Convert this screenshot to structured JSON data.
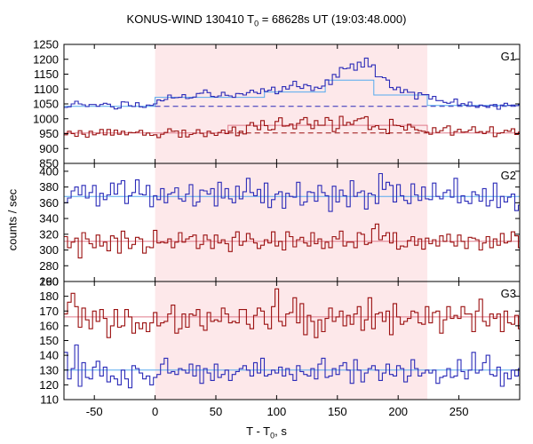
{
  "title": {
    "pre": "KONUS-WIND 130410 T",
    "sub": "0",
    "post": " = 68628s UT (19:03:48.000)"
  },
  "xlabel": {
    "pre": "T - T",
    "sub": "0",
    "post": ", s"
  },
  "ylabel": "counts / sec",
  "colors": {
    "blue": "#2b2bb8",
    "red": "#9b1111",
    "blue_fit": "#55aaee",
    "red_fit": "#e07a8a",
    "shade": "#fde8ea"
  },
  "chart_data": {
    "type": "line",
    "xlim": [
      -75,
      300
    ],
    "x_ticks": [
      -50,
      0,
      50,
      100,
      150,
      200,
      250
    ],
    "shaded_interval": [
      0,
      224
    ],
    "panels": [
      {
        "name": "G1",
        "ylim": [
          850,
          1250
        ],
        "yticks": [
          850,
          900,
          950,
          1000,
          1050,
          1100,
          1150,
          1200,
          1250
        ],
        "series": [
          {
            "color": "blue",
            "x_start": -75,
            "bin": 2.944,
            "values": [
              1038,
              1040,
              1050,
              1059,
              1050,
              1047,
              1041,
              1048,
              1048,
              1042,
              1048,
              1052,
              1049,
              1040,
              1033,
              1036,
              1057,
              1056,
              1044,
              1041,
              1054,
              1040,
              1038,
              1046,
              1045,
              1050,
              1063,
              1060,
              1065,
              1080,
              1070,
              1071,
              1072,
              1081,
              1068,
              1070,
              1073,
              1085,
              1086,
              1097,
              1088,
              1075,
              1073,
              1077,
              1089,
              1079,
              1077,
              1072,
              1085,
              1084,
              1080,
              1088,
              1096,
              1089,
              1085,
              1101,
              1092,
              1096,
              1106,
              1084,
              1092,
              1108,
              1100,
              1112,
              1126,
              1108,
              1102,
              1115,
              1111,
              1095,
              1106,
              1102,
              1110,
              1131,
              1115,
              1149,
              1140,
              1172,
              1168,
              1170,
              1184,
              1163,
              1190,
              1174,
              1204,
              1175,
              1181,
              1141,
              1141,
              1138,
              1130,
              1105,
              1098,
              1106,
              1088,
              1098,
              1089,
              1089,
              1066,
              1087,
              1081,
              1081,
              1066,
              1075,
              1061,
              1061,
              1055,
              1052,
              1056,
              1066,
              1046,
              1051,
              1046,
              1056,
              1043,
              1038,
              1046,
              1043,
              1038,
              1046,
              1048,
              1032,
              1046,
              1052,
              1045,
              1046,
              1044,
              1047
            ]
          },
          {
            "color": "red",
            "x_start": -75,
            "bin": 2.944,
            "values": [
              946,
              958,
              950,
              941,
              960,
              948,
              938,
              958,
              946,
              951,
              964,
              946,
              964,
              945,
              962,
              948,
              958,
              946,
              954,
              953,
              955,
              961,
              945,
              952,
              944,
              946,
              937,
              948,
              954,
              966,
              958,
              959,
              938,
              962,
              939,
              947,
              951,
              963,
              951,
              940,
              958,
              951,
              944,
              954,
              962,
              950,
              958,
              972,
              943,
              958,
              949,
              978,
              987,
              975,
              963,
              994,
              977,
              962,
              964,
              991,
              1003,
              975,
              976,
              982,
              966,
              984,
              997,
              1004,
              981,
              967,
              994,
              978,
              978,
              1004,
              995,
              957,
              967,
              1008,
              978,
              988,
              981,
              994,
              1000,
              1002,
              1007,
              964,
              973,
              977,
              965,
              965,
              950,
              998,
              978,
              977,
              974,
              962,
              981,
              972,
              963,
              960,
              958,
              955,
              948,
              970,
              954,
              960,
              970,
              976,
              945,
              957,
              965,
              955,
              956,
              962,
              973,
              954,
              957,
              950,
              957,
              973,
              940,
              951,
              953,
              961,
              958,
              966,
              947,
              955
            ]
          }
        ],
        "fits": [
          {
            "color": "blue_fit",
            "x": [
              -75,
              0,
              0,
              90,
              90,
              140,
              140,
              180,
              180,
              224,
              224,
              300
            ],
            "y": [
              1042,
              1042,
              1072,
              1072,
              1090,
              1090,
              1130,
              1130,
              1080,
              1080,
              1045,
              1045
            ]
          },
          {
            "color": "blue",
            "dashed": true,
            "x": [
              0,
              300
            ],
            "y": [
              1042,
              1042
            ]
          },
          {
            "color": "red_fit",
            "x": [
              -75,
              60,
              60,
              224,
              224,
              300
            ],
            "y": [
              952,
              952,
              978,
              978,
              952,
              952
            ]
          },
          {
            "color": "red",
            "dashed": true,
            "x": [
              60,
              224
            ],
            "y": [
              952,
              952
            ]
          }
        ]
      },
      {
        "name": "G2",
        "ylim": [
          260,
          410
        ],
        "yticks": [
          260,
          280,
          300,
          320,
          340,
          360,
          380,
          400
        ],
        "series": [
          {
            "color": "blue",
            "x_start": -75,
            "bin": 2.944,
            "values": [
              360,
              366,
              375,
              380,
              370,
              382,
              366,
              373,
              382,
              356,
              372,
              364,
              370,
              385,
              371,
              384,
              388,
              359,
              369,
              373,
              389,
              371,
              370,
              382,
              355,
              369,
              364,
              378,
              360,
              371,
              373,
              379,
              365,
              362,
              371,
              383,
              356,
              361,
              376,
              375,
              371,
              378,
              356,
              386,
              366,
              378,
              365,
              360,
              381,
              365,
              374,
              391,
              373,
              369,
              377,
              360,
              385,
              354,
              364,
              371,
              374,
              353,
              372,
              368,
              367,
              386,
              357,
              361,
              374,
              373,
              362,
              382,
              373,
              369,
              349,
              381,
              361,
              376,
              369,
              355,
              388,
              368,
              373,
              375,
              352,
              372,
              370,
              359,
              397,
              377,
              386,
              382,
              361,
              383,
              369,
              363,
              359,
              384,
              370,
              363,
              380,
              365,
              364,
              385,
              368,
              365,
              373,
              376,
              367,
              391,
              360,
              369,
              362,
              359,
              374,
              370,
              362,
              378,
              356,
              363,
              385,
              354,
              368,
              361,
              367,
              371,
              350,
              357
            ]
          },
          {
            "color": "red",
            "x_start": -75,
            "bin": 2.944,
            "values": [
              317,
              303,
              310,
              315,
              290,
              322,
              314,
              308,
              303,
              319,
              305,
              310,
              299,
              318,
              315,
              296,
              324,
              315,
              302,
              307,
              316,
              314,
              296,
              304,
              303,
              325,
              309,
              310,
              309,
              314,
              303,
              310,
              322,
              310,
              314,
              317,
              319,
              302,
              307,
              319,
              313,
              302,
              319,
              309,
              313,
              308,
              298,
              316,
              323,
              306,
              311,
              321,
              314,
              309,
              302,
              306,
              313,
              309,
              323,
              305,
              311,
              300,
              323,
              317,
              304,
              313,
              316,
              309,
              305,
              322,
              308,
              314,
              302,
              310,
              303,
              317,
              314,
              324,
              305,
              310,
              310,
              303,
              322,
              320,
              307,
              309,
              327,
              333,
              313,
              318,
              322,
              309,
              322,
              301,
              305,
              304,
              312,
              317,
              306,
              314,
              301,
              315,
              308,
              313,
              305,
              318,
              311,
              320,
              310,
              305,
              319,
              311,
              302,
              316,
              315,
              313,
              300,
              309,
              317,
              303,
              314,
              306,
              321,
              309,
              311,
              323,
              318,
              303
            ]
          }
        ],
        "fits": [
          {
            "color": "blue_fit",
            "x": [
              -75,
              300
            ],
            "y": [
              368,
              368
            ]
          },
          {
            "color": "red_fit",
            "x": [
              -75,
              300
            ],
            "y": [
              311,
              311
            ]
          }
        ]
      },
      {
        "name": "G3",
        "ylim": [
          110,
          190
        ],
        "yticks": [
          110,
          120,
          130,
          140,
          150,
          160,
          170,
          180,
          190
        ],
        "series": [
          {
            "color": "red",
            "x_start": -75,
            "bin": 2.944,
            "values": [
              168,
              176,
              182,
              173,
              159,
              172,
              164,
              158,
              170,
              163,
              171,
              165,
              152,
              160,
              171,
              159,
              160,
              171,
              166,
              155,
              162,
              158,
              162,
              156,
              162,
              169,
              160,
              162,
              163,
              168,
              174,
              155,
              158,
              168,
              159,
              168,
              167,
              171,
              160,
              157,
              169,
              163,
              164,
              163,
              172,
              168,
              162,
              163,
              162,
              171,
              171,
              161,
              158,
              167,
              172,
              170,
              161,
              158,
              173,
              185,
              163,
              160,
              168,
              169,
              179,
              162,
              175,
              154,
              167,
              163,
              152,
              164,
              156,
              165,
              172,
              163,
              166,
              170,
              160,
              167,
              161,
              168,
              173,
              157,
              164,
              179,
              158,
              168,
              169,
              163,
              170,
              154,
              175,
              166,
              161,
              163,
              165,
              170,
              169,
              162,
              161,
              173,
              162,
              169,
              170,
              155,
              164,
              173,
              165,
              167,
              165,
              173,
              168,
              168,
              156,
              170,
              178,
              163,
              160,
              168,
              165,
              168,
              156,
              170,
              162,
              161,
              167,
              158
            ]
          },
          {
            "color": "blue",
            "x_start": -75,
            "bin": 2.944,
            "values": [
              142,
              124,
              131,
              147,
              119,
              135,
              125,
              124,
              132,
              136,
              126,
              132,
              122,
              126,
              124,
              120,
              130,
              124,
              118,
              133,
              131,
              128,
              124,
              126,
              120,
              125,
              127,
              134,
              138,
              128,
              129,
              127,
              131,
              130,
              128,
              134,
              126,
              133,
              121,
              131,
              128,
              123,
              134,
              125,
              127,
              130,
              123,
              127,
              129,
              131,
              133,
              130,
              126,
              135,
              128,
              138,
              126,
              127,
              130,
              128,
              132,
              126,
              131,
              127,
              123,
              133,
              129,
              127,
              126,
              131,
              124,
              134,
              138,
              125,
              126,
              131,
              127,
              133,
              135,
              130,
              121,
              137,
              130,
              122,
              128,
              131,
              133,
              130,
              123,
              128,
              134,
              127,
              126,
              133,
              131,
              122,
              126,
              137,
              131,
              126,
              128,
              130,
              128,
              130,
              121,
              125,
              126,
              131,
              125,
              126,
              137,
              129,
              124,
              130,
              142,
              128,
              130,
              135,
              140,
              127,
              126,
              132,
              119,
              128,
              124,
              130,
              126,
              131
            ]
          }
        ],
        "fits": [
          {
            "color": "red_fit",
            "x": [
              -75,
              300
            ],
            "y": [
              166,
              166
            ]
          },
          {
            "color": "blue_fit",
            "x": [
              -75,
              300
            ],
            "y": [
              130,
              130
            ]
          }
        ]
      }
    ]
  }
}
